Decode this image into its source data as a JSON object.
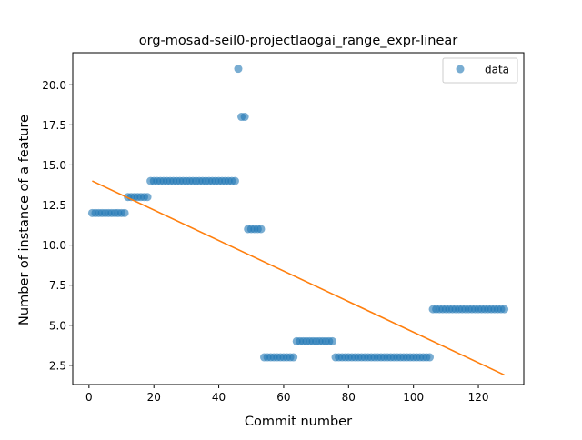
{
  "chart_data": {
    "type": "scatter",
    "title": "org-mosad-seil0-projectlaogai_range_expr-linear",
    "xlabel": "Commit number",
    "ylabel": "Number of instance of a feature",
    "xlim": [
      -5,
      134
    ],
    "ylim": [
      1.3,
      22.0
    ],
    "xticks": [
      0,
      20,
      40,
      60,
      80,
      100,
      120
    ],
    "yticks": [
      2.5,
      5.0,
      7.5,
      10.0,
      12.5,
      15.0,
      17.5,
      20.0
    ],
    "ytick_labels": [
      "2.5",
      "5.0",
      "7.5",
      "10.0",
      "12.5",
      "15.0",
      "17.5",
      "20.0"
    ],
    "legend": {
      "position": "top-right",
      "entries": [
        "data"
      ]
    },
    "colors": {
      "points": "#1f77b4",
      "fit_line": "#ff7f0e"
    },
    "series": [
      {
        "name": "data",
        "points": [
          [
            1,
            12
          ],
          [
            2,
            12
          ],
          [
            3,
            12
          ],
          [
            4,
            12
          ],
          [
            5,
            12
          ],
          [
            6,
            12
          ],
          [
            7,
            12
          ],
          [
            8,
            12
          ],
          [
            9,
            12
          ],
          [
            10,
            12
          ],
          [
            11,
            12
          ],
          [
            12,
            13
          ],
          [
            13,
            13
          ],
          [
            14,
            13
          ],
          [
            15,
            13
          ],
          [
            16,
            13
          ],
          [
            17,
            13
          ],
          [
            18,
            13
          ],
          [
            19,
            14
          ],
          [
            20,
            14
          ],
          [
            21,
            14
          ],
          [
            22,
            14
          ],
          [
            23,
            14
          ],
          [
            24,
            14
          ],
          [
            25,
            14
          ],
          [
            26,
            14
          ],
          [
            27,
            14
          ],
          [
            28,
            14
          ],
          [
            29,
            14
          ],
          [
            30,
            14
          ],
          [
            31,
            14
          ],
          [
            32,
            14
          ],
          [
            33,
            14
          ],
          [
            34,
            14
          ],
          [
            35,
            14
          ],
          [
            36,
            14
          ],
          [
            37,
            14
          ],
          [
            38,
            14
          ],
          [
            39,
            14
          ],
          [
            40,
            14
          ],
          [
            41,
            14
          ],
          [
            42,
            14
          ],
          [
            43,
            14
          ],
          [
            44,
            14
          ],
          [
            45,
            14
          ],
          [
            46,
            21
          ],
          [
            47,
            18
          ],
          [
            48,
            18
          ],
          [
            49,
            11
          ],
          [
            50,
            11
          ],
          [
            51,
            11
          ],
          [
            52,
            11
          ],
          [
            53,
            11
          ],
          [
            54,
            3
          ],
          [
            55,
            3
          ],
          [
            56,
            3
          ],
          [
            57,
            3
          ],
          [
            58,
            3
          ],
          [
            59,
            3
          ],
          [
            60,
            3
          ],
          [
            61,
            3
          ],
          [
            62,
            3
          ],
          [
            63,
            3
          ],
          [
            64,
            4
          ],
          [
            65,
            4
          ],
          [
            66,
            4
          ],
          [
            67,
            4
          ],
          [
            68,
            4
          ],
          [
            69,
            4
          ],
          [
            70,
            4
          ],
          [
            71,
            4
          ],
          [
            72,
            4
          ],
          [
            73,
            4
          ],
          [
            74,
            4
          ],
          [
            75,
            4
          ],
          [
            76,
            3
          ],
          [
            77,
            3
          ],
          [
            78,
            3
          ],
          [
            79,
            3
          ],
          [
            80,
            3
          ],
          [
            81,
            3
          ],
          [
            82,
            3
          ],
          [
            83,
            3
          ],
          [
            84,
            3
          ],
          [
            85,
            3
          ],
          [
            86,
            3
          ],
          [
            87,
            3
          ],
          [
            88,
            3
          ],
          [
            89,
            3
          ],
          [
            90,
            3
          ],
          [
            91,
            3
          ],
          [
            92,
            3
          ],
          [
            93,
            3
          ],
          [
            94,
            3
          ],
          [
            95,
            3
          ],
          [
            96,
            3
          ],
          [
            97,
            3
          ],
          [
            98,
            3
          ],
          [
            99,
            3
          ],
          [
            100,
            3
          ],
          [
            101,
            3
          ],
          [
            102,
            3
          ],
          [
            103,
            3
          ],
          [
            104,
            3
          ],
          [
            105,
            3
          ],
          [
            106,
            6
          ],
          [
            107,
            6
          ],
          [
            108,
            6
          ],
          [
            109,
            6
          ],
          [
            110,
            6
          ],
          [
            111,
            6
          ],
          [
            112,
            6
          ],
          [
            113,
            6
          ],
          [
            114,
            6
          ],
          [
            115,
            6
          ],
          [
            116,
            6
          ],
          [
            117,
            6
          ],
          [
            118,
            6
          ],
          [
            119,
            6
          ],
          [
            120,
            6
          ],
          [
            121,
            6
          ],
          [
            122,
            6
          ],
          [
            123,
            6
          ],
          [
            124,
            6
          ],
          [
            125,
            6
          ],
          [
            126,
            6
          ],
          [
            127,
            6
          ],
          [
            128,
            6
          ]
        ]
      },
      {
        "type": "line",
        "points": [
          [
            1,
            14.0
          ],
          [
            128,
            1.9
          ]
        ]
      }
    ]
  }
}
